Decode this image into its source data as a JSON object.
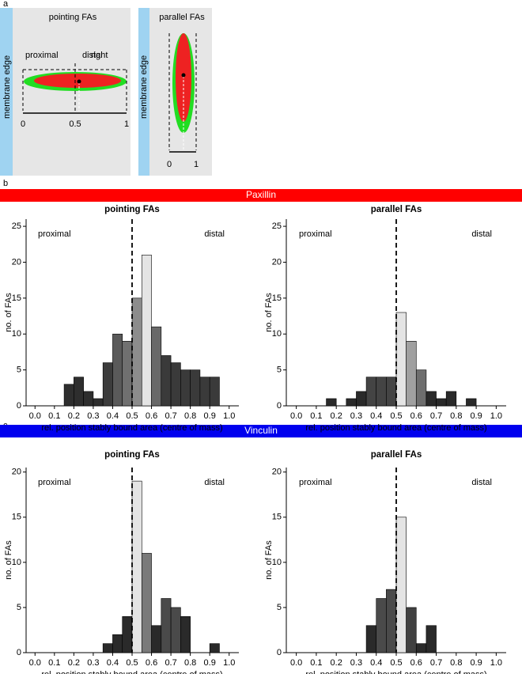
{
  "panel_a": {
    "label": "a",
    "pointing": {
      "title": "pointing FAs",
      "membrane": "membrane edge",
      "proximal": "proximal",
      "distal": "distal",
      "overlap": "right",
      "ticks": [
        "0",
        "0.5",
        "1"
      ]
    },
    "parallel": {
      "title": "parallel FAs",
      "membrane": "membrane edge",
      "ticks": [
        "0",
        "1"
      ]
    }
  },
  "panel_b": {
    "label": "b",
    "protein": "Paxillin"
  },
  "panel_c": {
    "label": "c",
    "protein": "Vinculin"
  },
  "chart_data": [
    {
      "type": "histogram",
      "title": "pointing FAs",
      "xlabel": "rel. position stably bound area (centre of mass)",
      "ylabel": "no. of FAs",
      "annotations": [
        "proximal",
        "distal"
      ],
      "vline": 0.5,
      "bins": [
        0,
        0.05,
        0.1,
        0.15,
        0.2,
        0.25,
        0.3,
        0.35,
        0.4,
        0.45,
        0.5,
        0.55,
        0.6,
        0.65,
        0.7,
        0.75,
        0.8,
        0.85,
        0.9,
        0.95,
        1
      ],
      "values": [
        0,
        0,
        0,
        3,
        4,
        2,
        1,
        6,
        10,
        9,
        15,
        21,
        11,
        7,
        6,
        5,
        5,
        4,
        4,
        0
      ],
      "colors": [
        "#2e2e2e",
        "#2e2e2e",
        "#2e2e2e",
        "#2e2e2e",
        "#2e2e2e",
        "#2e2e2e",
        "#2e2e2e",
        "#3c3c3c",
        "#5a5a5a",
        "#707070",
        "#8c8c8c",
        "#e4e4e4",
        "#686868",
        "#3a3a3a",
        "#3a3a3a",
        "#3a3a3a",
        "#3a3a3a",
        "#3a3a3a",
        "#3a3a3a",
        "#2e2e2e"
      ],
      "xlim": [
        -0.05,
        1.05
      ],
      "ylim": [
        0,
        26
      ],
      "xticks": [
        {
          "value": 0,
          "label": "0.0"
        },
        0.1,
        0.2,
        0.3,
        0.4,
        0.5,
        0.6,
        0.7,
        0.8,
        0.9,
        {
          "value": 1,
          "label": "1.0"
        }
      ],
      "yticks": [
        0,
        5,
        10,
        15,
        20,
        25
      ]
    },
    {
      "type": "histogram",
      "title": "parallel FAs",
      "xlabel": "rel. position stably bound area (centre of mass)",
      "ylabel": "no. of FAs",
      "annotations": [
        "proximal",
        "distal"
      ],
      "vline": 0.5,
      "bins": [
        0,
        0.05,
        0.1,
        0.15,
        0.2,
        0.25,
        0.3,
        0.35,
        0.4,
        0.45,
        0.5,
        0.55,
        0.6,
        0.65,
        0.7,
        0.75,
        0.8,
        0.85,
        0.9,
        0.95,
        1
      ],
      "values": [
        0,
        0,
        0,
        1,
        0,
        1,
        2,
        4,
        4,
        4,
        13,
        9,
        5,
        2,
        1,
        2,
        0,
        1,
        0,
        0
      ],
      "colors": [
        "#2a2a2a",
        "#2a2a2a",
        "#2a2a2a",
        "#2a2a2a",
        "#2a2a2a",
        "#2a2a2a",
        "#2a2a2a",
        "#444444",
        "#444444",
        "#444444",
        "#e4e4e4",
        "#a0a0a0",
        "#6e6e6e",
        "#2a2a2a",
        "#2a2a2a",
        "#2a2a2a",
        "#2a2a2a",
        "#2a2a2a",
        "#2a2a2a",
        "#2a2a2a"
      ],
      "xlim": [
        -0.05,
        1.05
      ],
      "ylim": [
        0,
        26
      ],
      "xticks": [
        {
          "value": 0,
          "label": "0.0"
        },
        0.1,
        0.2,
        0.3,
        0.4,
        0.5,
        0.6,
        0.7,
        0.8,
        0.9,
        {
          "value": 1,
          "label": "1.0"
        }
      ],
      "yticks": [
        0,
        5,
        10,
        15,
        20,
        25
      ]
    },
    {
      "type": "histogram",
      "title": "pointing FAs",
      "xlabel": "rel. position stably bound area (centre of mass)",
      "ylabel": "no. of FAs",
      "annotations": [
        "proximal",
        "distal"
      ],
      "vline": 0.5,
      "bins": [
        0,
        0.05,
        0.1,
        0.15,
        0.2,
        0.25,
        0.3,
        0.35,
        0.4,
        0.45,
        0.5,
        0.55,
        0.6,
        0.65,
        0.7,
        0.75,
        0.8,
        0.85,
        0.9,
        0.95,
        1
      ],
      "values": [
        0,
        0,
        0,
        0,
        0,
        0,
        0,
        1,
        2,
        4,
        19,
        11,
        3,
        6,
        5,
        4,
        0,
        0,
        1,
        0
      ],
      "colors": [
        "#2a2a2a",
        "#2a2a2a",
        "#2a2a2a",
        "#2a2a2a",
        "#2a2a2a",
        "#2a2a2a",
        "#2a2a2a",
        "#2a2a2a",
        "#2a2a2a",
        "#2a2a2a",
        "#e4e4e4",
        "#7a7a7a",
        "#2a2a2a",
        "#4a4a4a",
        "#4a4a4a",
        "#2a2a2a",
        "#2a2a2a",
        "#2a2a2a",
        "#2a2a2a",
        "#2a2a2a"
      ],
      "xlim": [
        -0.05,
        1.05
      ],
      "ylim": [
        0,
        20.5
      ],
      "xticks": [
        {
          "value": 0,
          "label": "0.0"
        },
        0.1,
        0.2,
        0.3,
        0.4,
        0.5,
        0.6,
        0.7,
        0.8,
        0.9,
        {
          "value": 1,
          "label": "1.0"
        }
      ],
      "yticks": [
        0,
        5,
        10,
        15,
        20
      ]
    },
    {
      "type": "histogram",
      "title": "parallel FAs",
      "xlabel": "rel. position stably bound area (centre of mass)",
      "ylabel": "no. of FAs",
      "annotations": [
        "proximal",
        "distal"
      ],
      "vline": 0.5,
      "bins": [
        0,
        0.05,
        0.1,
        0.15,
        0.2,
        0.25,
        0.3,
        0.35,
        0.4,
        0.45,
        0.5,
        0.55,
        0.6,
        0.65,
        0.7,
        0.75,
        0.8,
        0.85,
        0.9,
        0.95,
        1
      ],
      "values": [
        0,
        0,
        0,
        0,
        0,
        0,
        0,
        3,
        6,
        7,
        15,
        5,
        1,
        3,
        0,
        0,
        0,
        0,
        0,
        0
      ],
      "colors": [
        "#2a2a2a",
        "#2a2a2a",
        "#2a2a2a",
        "#2a2a2a",
        "#2a2a2a",
        "#2a2a2a",
        "#2a2a2a",
        "#2a2a2a",
        "#4a4a4a",
        "#4a4a4a",
        "#e4e4e4",
        "#404040",
        "#2a2a2a",
        "#2a2a2a",
        "#2a2a2a",
        "#2a2a2a",
        "#2a2a2a",
        "#2a2a2a",
        "#2a2a2a",
        "#2a2a2a"
      ],
      "xlim": [
        -0.05,
        1.05
      ],
      "ylim": [
        0,
        20.5
      ],
      "xticks": [
        {
          "value": 0,
          "label": "0.0"
        },
        0.1,
        0.2,
        0.3,
        0.4,
        0.5,
        0.6,
        0.7,
        0.8,
        0.9,
        {
          "value": 1,
          "label": "1.0"
        }
      ],
      "yticks": [
        0,
        5,
        10,
        15,
        20
      ]
    }
  ]
}
